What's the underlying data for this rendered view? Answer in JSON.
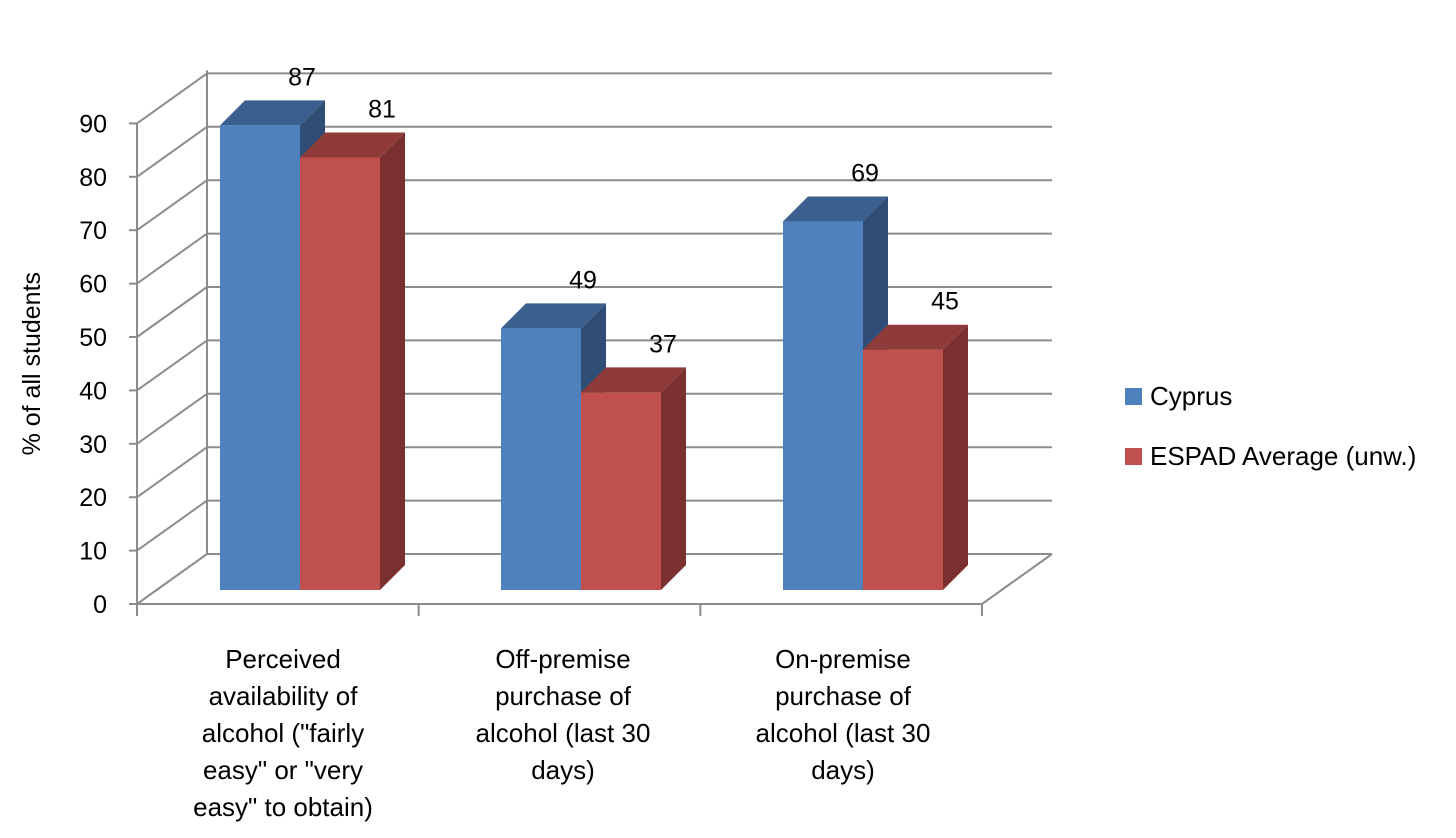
{
  "chart_data": {
    "type": "bar",
    "ylabel": "% of all students",
    "ylim": [
      0,
      90
    ],
    "yticks": [
      0,
      10,
      20,
      30,
      40,
      50,
      60,
      70,
      80,
      90
    ],
    "grid": true,
    "legend_position": "right",
    "categories": [
      [
        "Perceived",
        "availability of",
        "alcohol (\"fairly",
        "easy\" or \"very",
        "easy\" to obtain)"
      ],
      [
        "Off-premise",
        "purchase of",
        "alcohol (last 30",
        "days)"
      ],
      [
        "On-premise",
        "purchase of",
        "alcohol (last 30",
        "days)"
      ]
    ],
    "series": [
      {
        "name": "Cyprus",
        "values": [
          87,
          49,
          69
        ],
        "color": "#4f81bd",
        "top": "#3b5f8e",
        "side": "#2f4d75"
      },
      {
        "name": "ESPAD Average (unw.)",
        "values": [
          81,
          37,
          45
        ],
        "color": "#c0504d",
        "top": "#8f3b39",
        "side": "#7a302e"
      }
    ]
  }
}
